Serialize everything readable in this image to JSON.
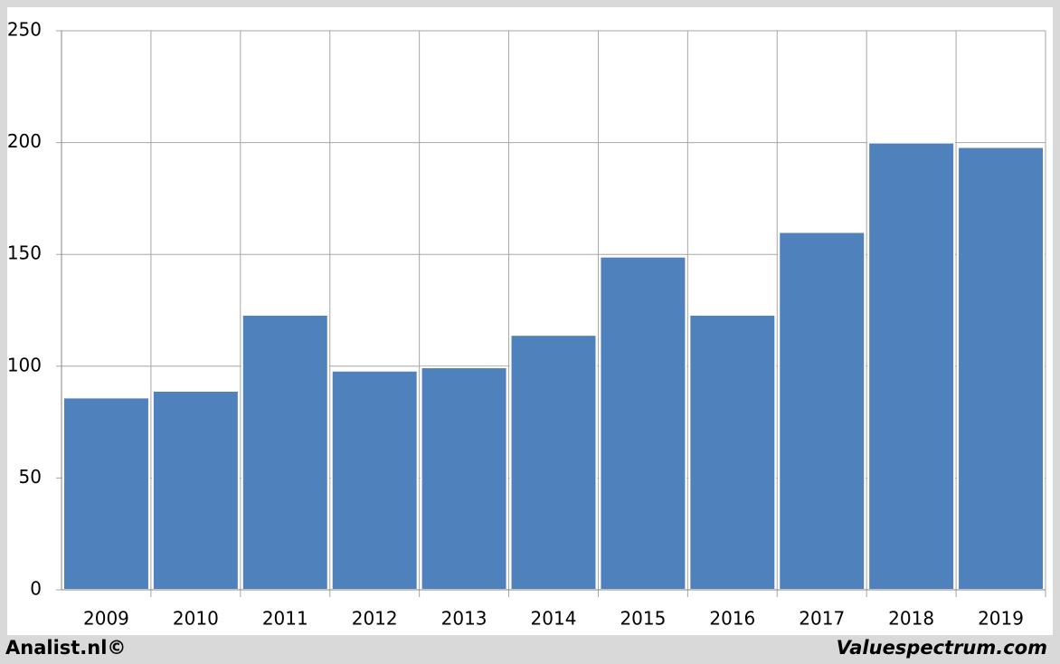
{
  "chart_data": {
    "type": "bar",
    "categories": [
      "2009",
      "2010",
      "2011",
      "2012",
      "2013",
      "2014",
      "2015",
      "2016",
      "2017",
      "2018",
      "2019"
    ],
    "values": [
      86,
      89,
      123,
      98,
      99.5,
      114,
      149,
      123,
      160,
      200,
      198
    ],
    "color": "#4f81bd",
    "ylim": [
      0,
      250
    ],
    "yticks": [
      0,
      50,
      100,
      150,
      200,
      250
    ],
    "grid": true,
    "footer_left": "Analist.nl©",
    "footer_right": "Valuespectrum.com"
  }
}
